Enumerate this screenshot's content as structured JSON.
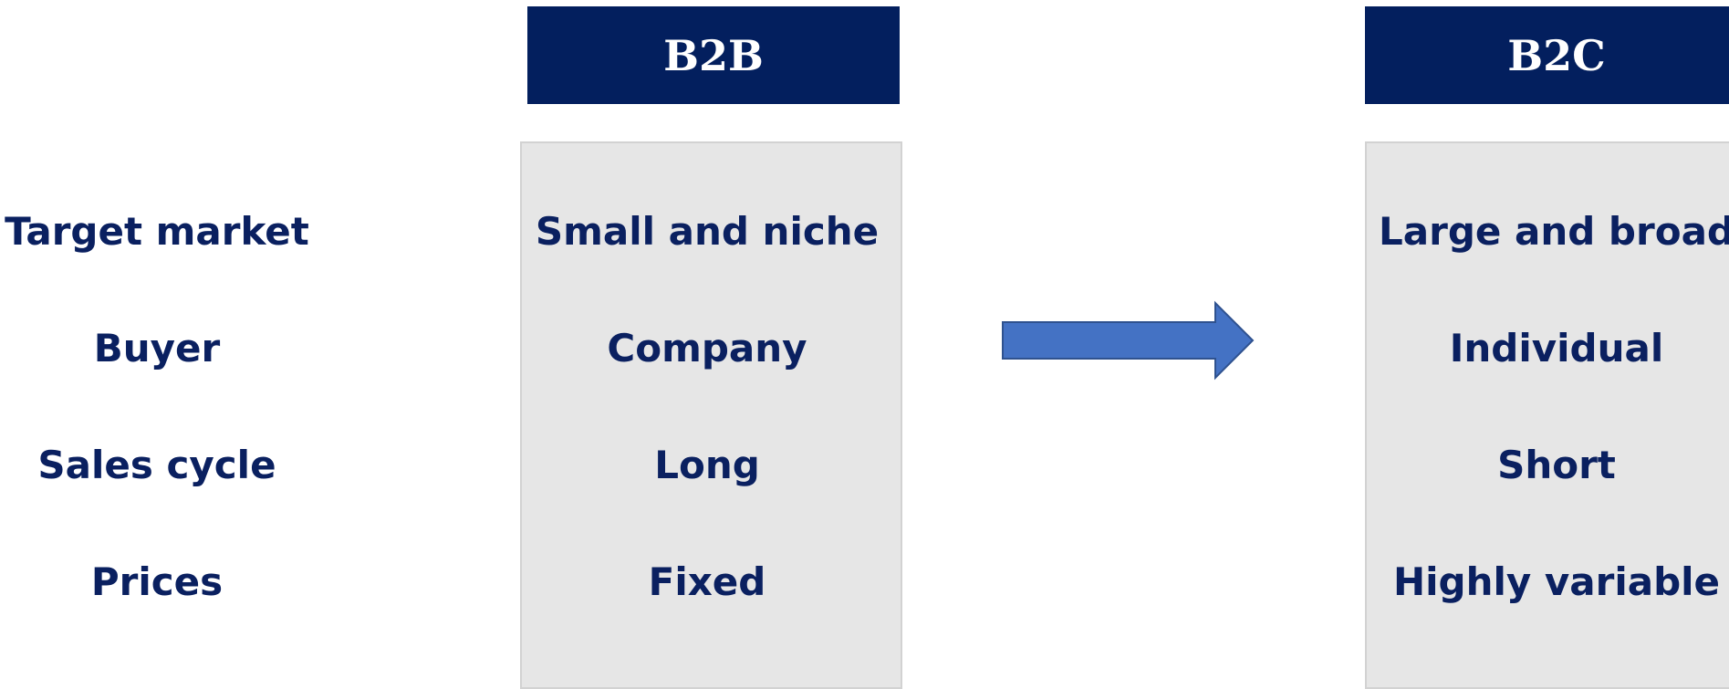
{
  "labels": [
    "Target market",
    "Buyer",
    "Sales cycle",
    "Prices"
  ],
  "columns": [
    {
      "title": "B2B",
      "values": [
        "Small and niche",
        "Company",
        "Long",
        "Fixed"
      ]
    },
    {
      "title": "B2C",
      "values": [
        "Large and broad",
        "Individual",
        "Short",
        "Highly variable"
      ]
    }
  ]
}
